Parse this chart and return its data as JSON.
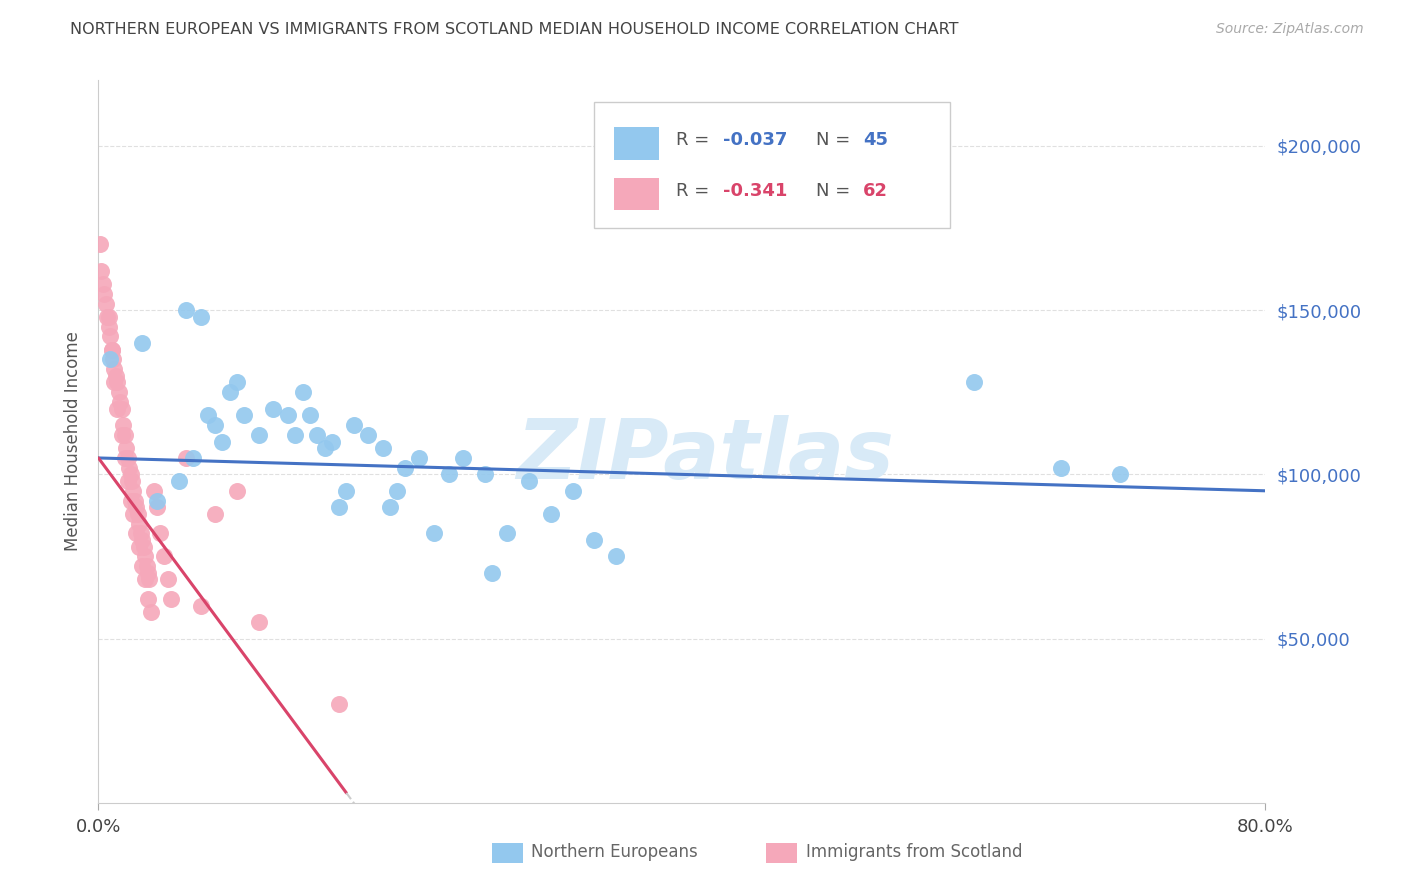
{
  "title": "NORTHERN EUROPEAN VS IMMIGRANTS FROM SCOTLAND MEDIAN HOUSEHOLD INCOME CORRELATION CHART",
  "source": "Source: ZipAtlas.com",
  "ylabel": "Median Household Income",
  "yticks": [
    50000,
    100000,
    150000,
    200000
  ],
  "ytick_labels": [
    "$50,000",
    "$100,000",
    "$150,000",
    "$200,000"
  ],
  "xlim": [
    0.0,
    0.8
  ],
  "ylim": [
    0,
    220000
  ],
  "legend_labels_bottom": [
    "Northern Europeans",
    "Immigrants from Scotland"
  ],
  "legend_r1_text": "-0.037",
  "legend_n1_text": "45",
  "legend_r2_text": "-0.341",
  "legend_n2_text": "62",
  "blue_color": "#93C8EE",
  "pink_color": "#F5A8BA",
  "blue_line_color": "#4472C4",
  "pink_line_color": "#D9446A",
  "dash_color": "#CCCCCC",
  "r_color_blue": "#4472C4",
  "r_color_pink": "#D9446A",
  "watermark_text": "ZIPatlas",
  "watermark_color": "#D8EAF7",
  "background_color": "#FFFFFF",
  "grid_color": "#DDDDDD",
  "blue_x": [
    0.008,
    0.03,
    0.06,
    0.07,
    0.075,
    0.08,
    0.09,
    0.095,
    0.1,
    0.11,
    0.12,
    0.13,
    0.135,
    0.14,
    0.145,
    0.15,
    0.155,
    0.16,
    0.165,
    0.175,
    0.185,
    0.195,
    0.205,
    0.21,
    0.22,
    0.24,
    0.25,
    0.265,
    0.28,
    0.295,
    0.31,
    0.325,
    0.34,
    0.355,
    0.04,
    0.055,
    0.065,
    0.085,
    0.17,
    0.2,
    0.23,
    0.27,
    0.6,
    0.66,
    0.7
  ],
  "blue_y": [
    135000,
    140000,
    150000,
    148000,
    118000,
    115000,
    125000,
    128000,
    118000,
    112000,
    120000,
    118000,
    112000,
    125000,
    118000,
    112000,
    108000,
    110000,
    90000,
    115000,
    112000,
    108000,
    95000,
    102000,
    105000,
    100000,
    105000,
    100000,
    82000,
    98000,
    88000,
    95000,
    80000,
    75000,
    92000,
    98000,
    105000,
    110000,
    95000,
    90000,
    82000,
    70000,
    128000,
    102000,
    100000
  ],
  "pink_x": [
    0.001,
    0.002,
    0.003,
    0.004,
    0.005,
    0.006,
    0.007,
    0.008,
    0.009,
    0.01,
    0.011,
    0.012,
    0.013,
    0.014,
    0.015,
    0.016,
    0.017,
    0.018,
    0.019,
    0.02,
    0.021,
    0.022,
    0.023,
    0.024,
    0.025,
    0.026,
    0.027,
    0.028,
    0.029,
    0.03,
    0.031,
    0.032,
    0.033,
    0.034,
    0.035,
    0.007,
    0.009,
    0.011,
    0.013,
    0.016,
    0.018,
    0.02,
    0.022,
    0.024,
    0.026,
    0.028,
    0.03,
    0.032,
    0.034,
    0.036,
    0.038,
    0.04,
    0.042,
    0.045,
    0.048,
    0.05,
    0.06,
    0.07,
    0.08,
    0.095,
    0.11,
    0.165
  ],
  "pink_y": [
    170000,
    162000,
    158000,
    155000,
    152000,
    148000,
    145000,
    142000,
    138000,
    135000,
    132000,
    130000,
    128000,
    125000,
    122000,
    120000,
    115000,
    112000,
    108000,
    105000,
    102000,
    100000,
    98000,
    95000,
    92000,
    90000,
    88000,
    85000,
    82000,
    80000,
    78000,
    75000,
    72000,
    70000,
    68000,
    148000,
    138000,
    128000,
    120000,
    112000,
    105000,
    98000,
    92000,
    88000,
    82000,
    78000,
    72000,
    68000,
    62000,
    58000,
    95000,
    90000,
    82000,
    75000,
    68000,
    62000,
    105000,
    60000,
    88000,
    95000,
    55000,
    30000
  ]
}
